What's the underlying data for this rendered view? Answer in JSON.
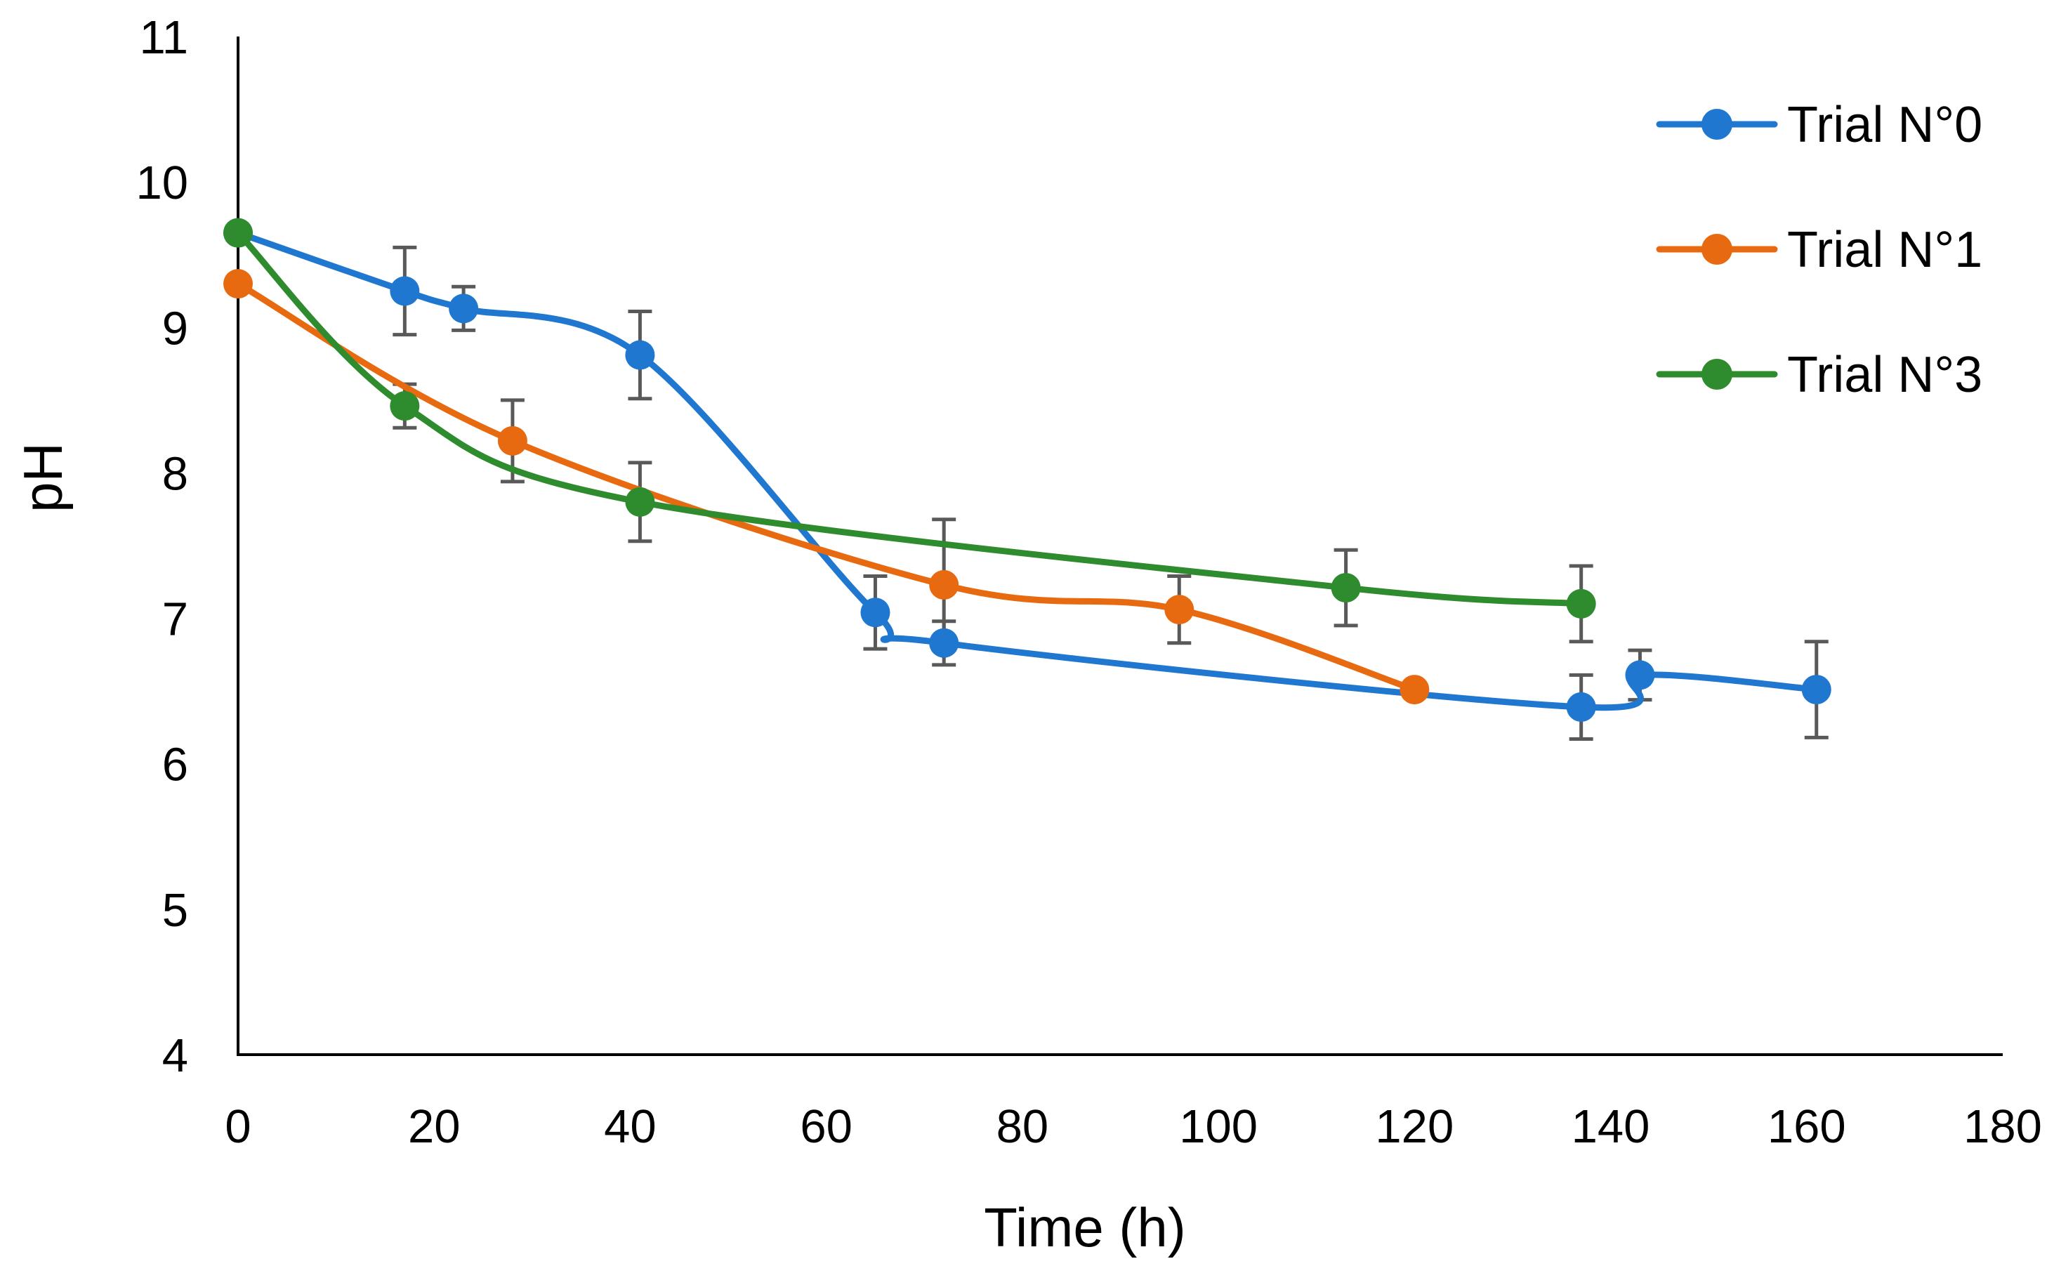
{
  "chart_data": {
    "type": "line",
    "title": "",
    "xlabel": "Time (h)",
    "ylabel": "pH",
    "xlim": [
      0,
      180
    ],
    "ylim": [
      4,
      11
    ],
    "xticks": [
      0,
      20,
      40,
      60,
      80,
      100,
      120,
      140,
      160,
      180
    ],
    "yticks": [
      4,
      5,
      6,
      7,
      8,
      9,
      10,
      11
    ],
    "grid": false,
    "legend_position": "top-right",
    "series": [
      {
        "name": "Trial N°0",
        "color": "#1f77d0",
        "x": [
          0,
          17,
          23,
          41,
          65,
          72,
          137,
          143,
          161
        ],
        "y": [
          9.65,
          9.25,
          9.13,
          8.81,
          7.04,
          6.83,
          6.39,
          6.61,
          6.51
        ],
        "err": [
          0.0,
          0.3,
          0.15,
          0.3,
          0.25,
          0.15,
          0.22,
          0.17,
          0.33
        ]
      },
      {
        "name": "Trial N°1",
        "color": "#e86a10",
        "x": [
          0,
          28,
          72,
          96,
          120
        ],
        "y": [
          9.3,
          8.22,
          7.23,
          7.06,
          6.51
        ],
        "err": [
          0.0,
          0.28,
          0.45,
          0.23,
          0.0
        ]
      },
      {
        "name": "Trial N°3",
        "color": "#2e8b2e",
        "x": [
          0,
          17,
          41,
          113,
          137
        ],
        "y": [
          9.65,
          8.46,
          7.8,
          7.21,
          7.1
        ],
        "err": [
          0.0,
          0.15,
          0.27,
          0.26,
          0.26
        ]
      }
    ]
  }
}
